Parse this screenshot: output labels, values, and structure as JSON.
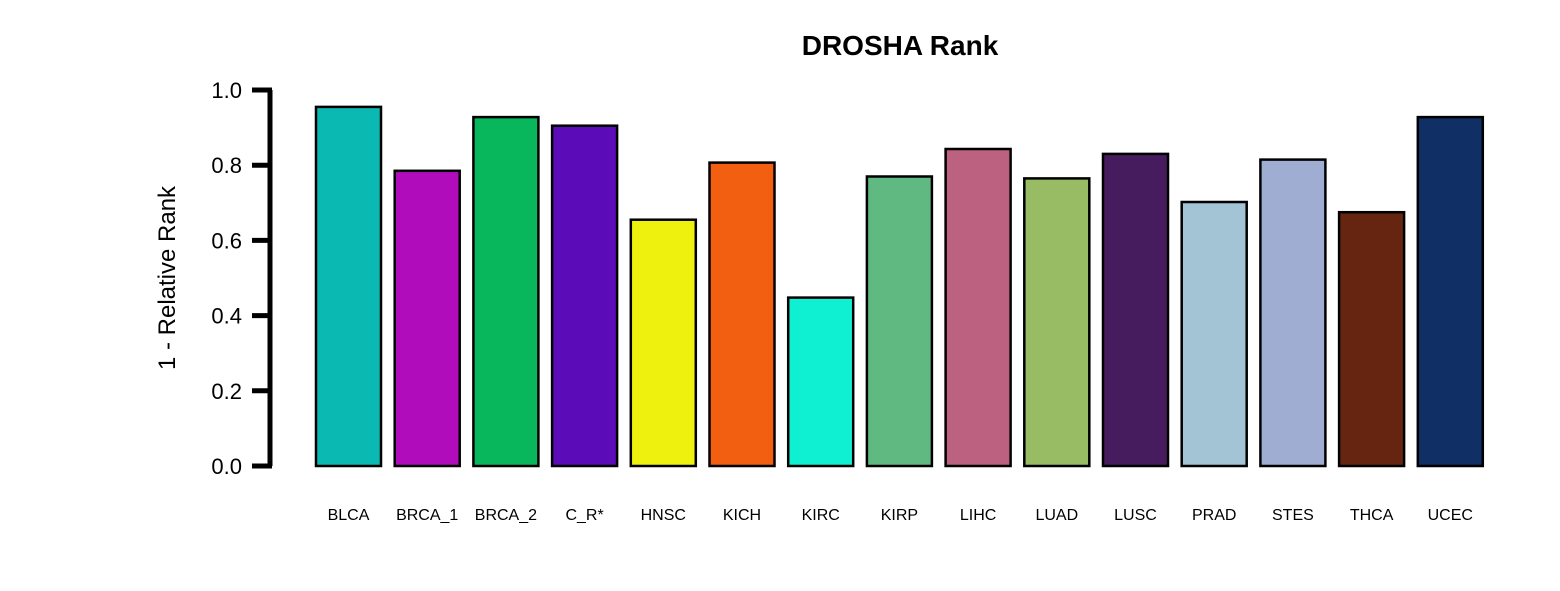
{
  "chart_data": {
    "type": "bar",
    "title": "DROSHA Rank",
    "xlabel": "",
    "ylabel": "1 - Relative Rank",
    "ylim": [
      0,
      1.0
    ],
    "yticks": [
      "0.0",
      "0.2",
      "0.4",
      "0.6",
      "0.8",
      "1.0"
    ],
    "grid": false,
    "categories": [
      "BLCA",
      "BRCA_1",
      "BRCA_2",
      "C_R*",
      "HNSC",
      "KICH",
      "KIRC",
      "KIRP",
      "LIHC",
      "LUAD",
      "LUSC",
      "PRAD",
      "STES",
      "THCA",
      "UCEC"
    ],
    "values": [
      0.955,
      0.785,
      0.928,
      0.905,
      0.655,
      0.807,
      0.448,
      0.77,
      0.843,
      0.765,
      0.83,
      0.702,
      0.815,
      0.675,
      0.928
    ],
    "colors": [
      "#0bb9b3",
      "#b10cbb",
      "#08b75b",
      "#5c0bb9",
      "#eef00d",
      "#f25f10",
      "#0ff0d3",
      "#60b981",
      "#bd6180",
      "#97bc63",
      "#471c5e",
      "#a2c4d4",
      "#a0add2",
      "#652510",
      "#0f2f65"
    ]
  }
}
